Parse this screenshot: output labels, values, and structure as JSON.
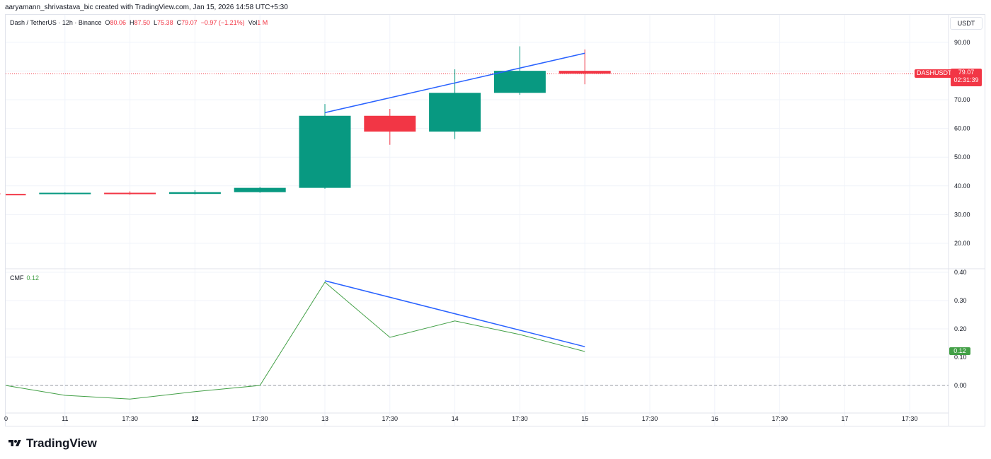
{
  "header": {
    "credit": "aaryamann_shrivastava_bic created with TradingView.com, Jan 15, 2026 14:58 UTC+5:30"
  },
  "legend": {
    "symbol": "Dash / TetherUS · 12h · Binance",
    "o_label": "O",
    "o_value": "80.06",
    "h_label": "H",
    "h_value": "87.50",
    "l_label": "L",
    "l_value": "75.38",
    "c_label": "C",
    "c_value": "79.07",
    "change": "−0.97 (−1.21%)",
    "vol_label": "Vol",
    "vol_value": "1 M"
  },
  "currency_button": "USDT",
  "last_price": {
    "symbol_tag": "DASHUSDT",
    "price": "79.07",
    "countdown": "02:31:39"
  },
  "cmf_legend": {
    "name": "CMF",
    "value": "0.12"
  },
  "cmf_tag": "0.12",
  "logo": {
    "text": "TradingView"
  },
  "colors": {
    "up": "#089981",
    "down": "#f23645",
    "cmf_line": "#43a047",
    "trendline": "#2962ff",
    "grid": "#f0f3fa"
  },
  "chart_data": [
    {
      "type": "candlestick",
      "title": "Dash / TetherUS · 12h · Binance",
      "y_axis_ticks": [
        "20.00",
        "30.00",
        "40.00",
        "50.00",
        "60.00",
        "70.00",
        "90.00"
      ],
      "ylim": [
        12,
        94
      ],
      "x_tick_labels": [
        "0",
        "11",
        "17:30",
        "12",
        "17:30",
        "13",
        "17:30",
        "14",
        "17:30",
        "15",
        "17:30",
        "16",
        "17:30",
        "17",
        "17:30"
      ],
      "candles": [
        {
          "o": 37.2,
          "h": 37.4,
          "l": 37.1,
          "c": 37.2,
          "dir": "down"
        },
        {
          "o": 37.3,
          "h": 37.7,
          "l": 37.0,
          "c": 37.6,
          "dir": "up"
        },
        {
          "o": 37.6,
          "h": 38.1,
          "l": 36.9,
          "c": 37.2,
          "dir": "down"
        },
        {
          "o": 37.2,
          "h": 38.5,
          "l": 37.0,
          "c": 37.8,
          "dir": "up"
        },
        {
          "o": 37.8,
          "h": 39.6,
          "l": 37.6,
          "c": 39.3,
          "dir": "up"
        },
        {
          "o": 39.3,
          "h": 68.5,
          "l": 39.0,
          "c": 64.4,
          "dir": "up"
        },
        {
          "o": 64.4,
          "h": 66.8,
          "l": 54.3,
          "c": 58.9,
          "dir": "down"
        },
        {
          "o": 58.9,
          "h": 80.6,
          "l": 56.3,
          "c": 72.4,
          "dir": "up"
        },
        {
          "o": 72.4,
          "h": 88.6,
          "l": 71.7,
          "c": 80.06,
          "dir": "up"
        },
        {
          "o": 80.06,
          "h": 87.5,
          "l": 75.38,
          "c": 79.07,
          "dir": "down"
        }
      ],
      "last_price": 79.07,
      "trendline": [
        {
          "bar": 5,
          "value": 65.5
        },
        {
          "bar": 9,
          "value": 86.2
        }
      ]
    },
    {
      "type": "line",
      "title": "CMF",
      "y_axis_ticks": [
        "0.00",
        "0.10",
        "0.20",
        "0.30",
        "0.40"
      ],
      "ylim": [
        -0.05,
        0.4
      ],
      "series": [
        {
          "name": "CMF",
          "values": [
            0.0,
            -0.035,
            -0.048,
            -0.022,
            0.0,
            0.365,
            0.17,
            0.228,
            0.18,
            0.12
          ]
        }
      ],
      "zero_line": 0.0,
      "trendline": [
        {
          "bar": 5,
          "value": 0.37
        },
        {
          "bar": 9,
          "value": 0.137
        }
      ]
    }
  ]
}
